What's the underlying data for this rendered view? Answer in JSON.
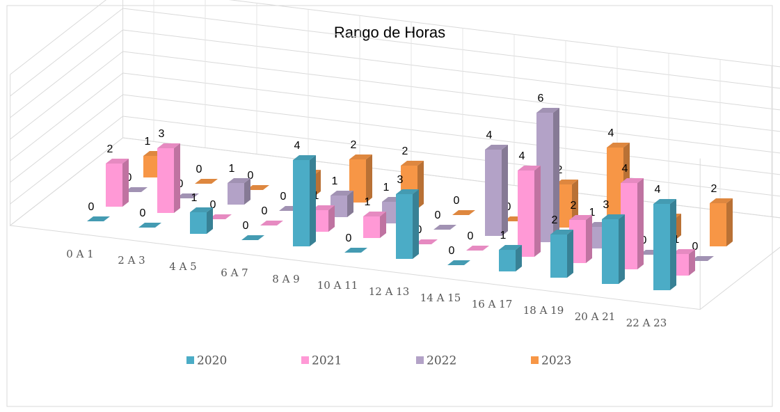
{
  "chart_data": {
    "type": "bar3d",
    "title": "Rango de Horas",
    "categories": [
      "0 A 1",
      "2 A 3",
      "4 A 5",
      "6 A 7",
      "8 A 9",
      "10 A 11",
      "12 A 13",
      "14 A 15",
      "16 A 17",
      "18 A 19",
      "20 A 21",
      "22 A 23"
    ],
    "series": [
      {
        "name": "2020",
        "color": "#4bacc6",
        "values": [
          0,
          0,
          1,
          0,
          4,
          0,
          3,
          0,
          1,
          2,
          3,
          4
        ]
      },
      {
        "name": "2021",
        "color": "#ff99d6",
        "values": [
          2,
          3,
          0,
          0,
          1,
          1,
          0,
          0,
          4,
          2,
          4,
          1
        ]
      },
      {
        "name": "2022",
        "color": "#b3a2c7",
        "values": [
          0,
          0,
          1,
          0,
          1,
          1,
          0,
          4,
          6,
          1,
          0,
          0
        ]
      },
      {
        "name": "2023",
        "color": "#f79646",
        "values": [
          1,
          0,
          0,
          1,
          2,
          2,
          0,
          0,
          2,
          4,
          1,
          2
        ]
      }
    ],
    "ylim": [
      0,
      7
    ],
    "yticks": [
      0,
      1,
      2,
      3,
      4,
      5,
      6,
      7
    ],
    "grid": true,
    "legend": "bottom"
  }
}
